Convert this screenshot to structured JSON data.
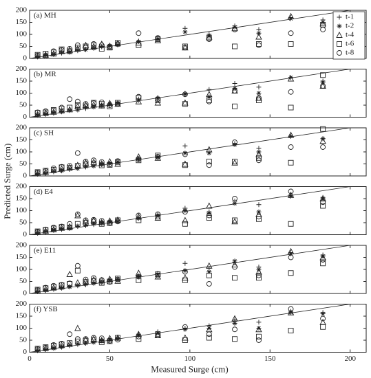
{
  "chart_data": [
    {
      "type": "scatter",
      "panel_label": "(a)  MH",
      "ylabel": "Predicted Surge (cm)",
      "legend": "upper right",
      "identity_line": true,
      "grid": false,
      "xlim": [
        0,
        210
      ],
      "xticks": [
        0,
        50,
        100,
        150,
        200
      ],
      "ylim": [
        0,
        200
      ],
      "yticks": [
        0,
        50,
        100,
        150,
        200
      ],
      "x": [
        5,
        10,
        15,
        20,
        25,
        30,
        35,
        40,
        45,
        50,
        55,
        68,
        80,
        97,
        112,
        128,
        143,
        163,
        183
      ],
      "series": [
        {
          "name": "t-1",
          "marker": "plus",
          "color": "#222222",
          "values": [
            8,
            12,
            18,
            22,
            28,
            32,
            38,
            45,
            48,
            55,
            58,
            72,
            85,
            125,
            100,
            135,
            120,
            170,
            160
          ]
        },
        {
          "name": "t-2",
          "marker": "star",
          "color": "#222222",
          "values": [
            6,
            14,
            16,
            25,
            26,
            35,
            36,
            42,
            50,
            52,
            56,
            70,
            80,
            110,
            95,
            130,
            105,
            165,
            150
          ]
        },
        {
          "name": "t-4",
          "marker": "triangle",
          "color": "#222222",
          "values": [
            10,
            15,
            20,
            30,
            35,
            40,
            55,
            50,
            60,
            48,
            62,
            65,
            75,
            45,
            90,
            125,
            90,
            175,
            145
          ]
        },
        {
          "name": "t-6",
          "marker": "square",
          "color": "#222222",
          "values": [
            15,
            20,
            25,
            38,
            30,
            45,
            50,
            55,
            40,
            45,
            65,
            55,
            80,
            50,
            85,
            50,
            60,
            60,
            140
          ]
        },
        {
          "name": "t-8",
          "marker": "circle",
          "color": "#222222",
          "values": [
            12,
            10,
            30,
            35,
            40,
            55,
            45,
            60,
            55,
            50,
            60,
            105,
            85,
            45,
            80,
            120,
            55,
            105,
            120
          ]
        }
      ]
    },
    {
      "type": "scatter",
      "panel_label": "(b)  MR",
      "identity_line": true,
      "grid": false,
      "xlim": [
        0,
        210
      ],
      "xticks": [
        0,
        50,
        100,
        150,
        200
      ],
      "ylim": [
        0,
        200
      ],
      "yticks": [
        0,
        50,
        100,
        150,
        200
      ],
      "x": [
        5,
        10,
        15,
        20,
        25,
        30,
        35,
        40,
        45,
        50,
        55,
        68,
        80,
        97,
        112,
        128,
        143,
        163,
        183
      ],
      "series": [
        {
          "name": "t-1",
          "marker": "plus",
          "color": "#222222",
          "values": [
            10,
            14,
            16,
            24,
            30,
            35,
            36,
            44,
            50,
            52,
            60,
            75,
            82,
            100,
            115,
            140,
            125,
            165,
            150
          ]
        },
        {
          "name": "t-2",
          "marker": "star",
          "color": "#222222",
          "values": [
            8,
            12,
            20,
            22,
            28,
            30,
            40,
            42,
            46,
            55,
            58,
            70,
            78,
            95,
            85,
            120,
            100,
            165,
            145
          ]
        },
        {
          "name": "t-4",
          "marker": "triangle",
          "color": "#222222",
          "values": [
            12,
            18,
            22,
            28,
            32,
            45,
            50,
            52,
            48,
            58,
            55,
            65,
            60,
            60,
            95,
            110,
            80,
            160,
            130
          ]
        },
        {
          "name": "t-6",
          "marker": "square",
          "color": "#222222",
          "values": [
            18,
            20,
            30,
            35,
            40,
            50,
            45,
            60,
            55,
            45,
            60,
            80,
            70,
            55,
            70,
            45,
            70,
            40,
            175
          ]
        },
        {
          "name": "t-8",
          "marker": "circle",
          "color": "#222222",
          "values": [
            20,
            25,
            28,
            40,
            75,
            65,
            55,
            58,
            62,
            50,
            55,
            85,
            75,
            95,
            65,
            110,
            80,
            105,
            130
          ]
        }
      ]
    },
    {
      "type": "scatter",
      "panel_label": "(c)  SH",
      "identity_line": true,
      "grid": false,
      "xlim": [
        0,
        210
      ],
      "xticks": [
        0,
        50,
        100,
        150,
        200
      ],
      "ylim": [
        0,
        200
      ],
      "yticks": [
        0,
        50,
        100,
        150,
        200
      ],
      "x": [
        5,
        10,
        15,
        20,
        25,
        30,
        35,
        40,
        45,
        50,
        55,
        68,
        80,
        97,
        112,
        128,
        143,
        163,
        183
      ],
      "series": [
        {
          "name": "t-1",
          "marker": "plus",
          "color": "#222222",
          "values": [
            9,
            13,
            17,
            23,
            27,
            33,
            37,
            43,
            47,
            53,
            57,
            72,
            82,
            125,
            100,
            135,
            115,
            165,
            155
          ]
        },
        {
          "name": "t-2",
          "marker": "star",
          "color": "#222222",
          "values": [
            7,
            11,
            19,
            21,
            29,
            31,
            39,
            41,
            49,
            51,
            59,
            68,
            78,
            95,
            95,
            130,
            100,
            165,
            155
          ]
        },
        {
          "name": "t-4",
          "marker": "triangle",
          "color": "#222222",
          "values": [
            11,
            16,
            24,
            30,
            36,
            45,
            55,
            58,
            52,
            60,
            50,
            80,
            75,
            50,
            110,
            55,
            90,
            170,
            145
          ]
        },
        {
          "name": "t-6",
          "marker": "square",
          "color": "#222222",
          "values": [
            16,
            22,
            26,
            36,
            34,
            42,
            48,
            52,
            44,
            46,
            58,
            65,
            85,
            45,
            60,
            60,
            75,
            55,
            195
          ]
        },
        {
          "name": "t-8",
          "marker": "circle",
          "color": "#222222",
          "values": [
            14,
            20,
            32,
            38,
            42,
            95,
            60,
            65,
            58,
            48,
            62,
            70,
            80,
            90,
            45,
            140,
            65,
            120,
            120
          ]
        }
      ]
    },
    {
      "type": "scatter",
      "panel_label": "(d)  E4",
      "identity_line": true,
      "grid": false,
      "xlim": [
        0,
        210
      ],
      "xticks": [
        0,
        50,
        100,
        150,
        200
      ],
      "ylim": [
        0,
        200
      ],
      "yticks": [
        0,
        50,
        100,
        150,
        200
      ],
      "x": [
        5,
        10,
        15,
        20,
        25,
        30,
        35,
        40,
        45,
        50,
        55,
        68,
        80,
        97,
        112,
        128,
        143,
        163,
        183
      ],
      "series": [
        {
          "name": "t-1",
          "marker": "plus",
          "color": "#222222",
          "values": [
            8,
            12,
            18,
            22,
            28,
            34,
            38,
            42,
            48,
            54,
            58,
            70,
            85,
            110,
            95,
            140,
            125,
            165,
            155
          ]
        },
        {
          "name": "t-2",
          "marker": "star",
          "color": "#222222",
          "values": [
            6,
            14,
            20,
            24,
            26,
            36,
            40,
            46,
            50,
            52,
            56,
            68,
            80,
            100,
            90,
            130,
            95,
            160,
            150
          ]
        },
        {
          "name": "t-4",
          "marker": "triangle",
          "color": "#222222",
          "values": [
            10,
            16,
            22,
            28,
            34,
            80,
            55,
            60,
            52,
            58,
            62,
            75,
            70,
            60,
            120,
            55,
            85,
            165,
            150
          ]
        },
        {
          "name": "t-6",
          "marker": "square",
          "color": "#222222",
          "values": [
            14,
            20,
            26,
            32,
            30,
            45,
            50,
            55,
            45,
            48,
            60,
            60,
            75,
            45,
            70,
            60,
            65,
            45,
            120
          ]
        },
        {
          "name": "t-8",
          "marker": "circle",
          "color": "#222222",
          "values": [
            12,
            22,
            30,
            34,
            45,
            85,
            60,
            62,
            58,
            50,
            55,
            80,
            85,
            95,
            80,
            150,
            75,
            180,
            135
          ]
        }
      ]
    },
    {
      "type": "scatter",
      "panel_label": "(e)  E11",
      "identity_line": true,
      "grid": false,
      "xlim": [
        0,
        210
      ],
      "xticks": [
        0,
        50,
        100,
        150,
        200
      ],
      "ylim": [
        0,
        200
      ],
      "yticks": [
        0,
        50,
        100,
        150,
        200
      ],
      "x": [
        5,
        10,
        15,
        20,
        25,
        30,
        35,
        40,
        45,
        50,
        55,
        68,
        80,
        97,
        112,
        128,
        143,
        163,
        183
      ],
      "series": [
        {
          "name": "t-1",
          "marker": "plus",
          "color": "#222222",
          "values": [
            9,
            12,
            17,
            24,
            28,
            32,
            36,
            44,
            48,
            56,
            58,
            72,
            84,
            125,
            105,
            130,
            110,
            170,
            160
          ]
        },
        {
          "name": "t-2",
          "marker": "star",
          "color": "#222222",
          "values": [
            7,
            13,
            19,
            22,
            27,
            34,
            38,
            42,
            46,
            52,
            60,
            70,
            80,
            95,
            90,
            135,
            100,
            165,
            155
          ]
        },
        {
          "name": "t-4",
          "marker": "triangle",
          "color": "#222222",
          "values": [
            12,
            18,
            24,
            30,
            80,
            45,
            50,
            58,
            55,
            60,
            52,
            85,
            70,
            65,
            115,
            120,
            90,
            175,
            150
          ]
        },
        {
          "name": "t-6",
          "marker": "square",
          "color": "#222222",
          "values": [
            16,
            22,
            28,
            34,
            40,
            95,
            48,
            52,
            44,
            50,
            62,
            55,
            80,
            55,
            75,
            65,
            65,
            85,
            125
          ]
        },
        {
          "name": "t-8",
          "marker": "circle",
          "color": "#222222",
          "values": [
            14,
            24,
            32,
            36,
            42,
            115,
            58,
            64,
            56,
            48,
            58,
            70,
            75,
            90,
            40,
            110,
            75,
            150,
            140
          ]
        }
      ]
    },
    {
      "type": "scatter",
      "panel_label": "(f)  YSB",
      "xlabel": "Measured Surge (cm)",
      "identity_line": true,
      "grid": false,
      "xlim": [
        0,
        210
      ],
      "xticks": [
        0,
        50,
        100,
        150,
        200
      ],
      "ylim": [
        0,
        200
      ],
      "yticks": [
        0,
        50,
        100,
        150,
        200
      ],
      "x": [
        5,
        10,
        15,
        20,
        25,
        30,
        35,
        40,
        45,
        50,
        55,
        68,
        80,
        97,
        112,
        128,
        143,
        163,
        183
      ],
      "series": [
        {
          "name": "t-1",
          "marker": "plus",
          "color": "#222222",
          "values": [
            8,
            13,
            18,
            23,
            27,
            33,
            38,
            43,
            48,
            54,
            58,
            75,
            85,
            100,
            110,
            135,
            125,
            170,
            165
          ]
        },
        {
          "name": "t-2",
          "marker": "star",
          "color": "#222222",
          "values": [
            6,
            11,
            16,
            21,
            29,
            35,
            37,
            41,
            49,
            50,
            56,
            70,
            80,
            95,
            100,
            120,
            100,
            165,
            160
          ]
        },
        {
          "name": "t-4",
          "marker": "triangle",
          "color": "#222222",
          "values": [
            11,
            17,
            23,
            29,
            35,
            100,
            52,
            55,
            50,
            58,
            60,
            75,
            70,
            60,
            95,
            140,
            95,
            165,
            125
          ]
        },
        {
          "name": "t-6",
          "marker": "square",
          "color": "#222222",
          "values": [
            15,
            21,
            27,
            33,
            38,
            45,
            48,
            52,
            42,
            46,
            60,
            55,
            75,
            50,
            60,
            55,
            65,
            90,
            105
          ]
        },
        {
          "name": "t-8",
          "marker": "circle",
          "color": "#222222",
          "values": [
            13,
            19,
            30,
            36,
            75,
            55,
            55,
            60,
            58,
            48,
            52,
            65,
            70,
            105,
            75,
            95,
            50,
            180,
            140
          ]
        }
      ]
    }
  ]
}
